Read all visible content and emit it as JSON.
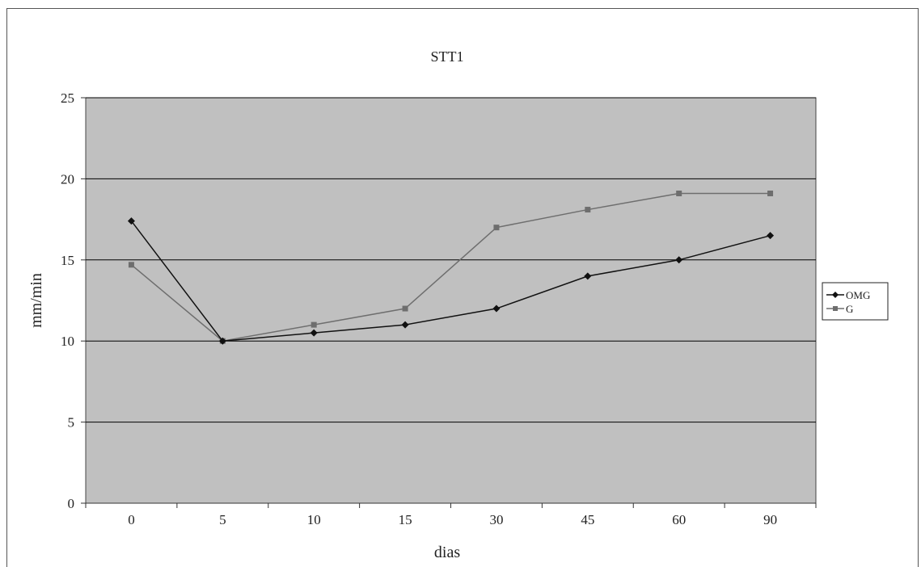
{
  "chart_data": {
    "type": "line",
    "title": "STT1",
    "xlabel": "dias",
    "ylabel": "mm/min",
    "categories": [
      "0",
      "5",
      "10",
      "15",
      "30",
      "45",
      "60",
      "90"
    ],
    "ylim": [
      0,
      25
    ],
    "yticks": [
      0,
      5,
      10,
      15,
      20,
      25
    ],
    "grid": true,
    "legend_position": "right",
    "series": [
      {
        "name": "OMG",
        "values": [
          17.4,
          10,
          10.5,
          11,
          12,
          14,
          15,
          16.5
        ],
        "color": "#111111",
        "marker": "diamond"
      },
      {
        "name": "G",
        "values": [
          14.7,
          10,
          11,
          12,
          17,
          18.1,
          19.1,
          19.1
        ],
        "color": "#6e6e6e",
        "marker": "square"
      }
    ],
    "colors": {
      "plot_background": "#c0c0c0",
      "gridline": "#000000"
    }
  }
}
